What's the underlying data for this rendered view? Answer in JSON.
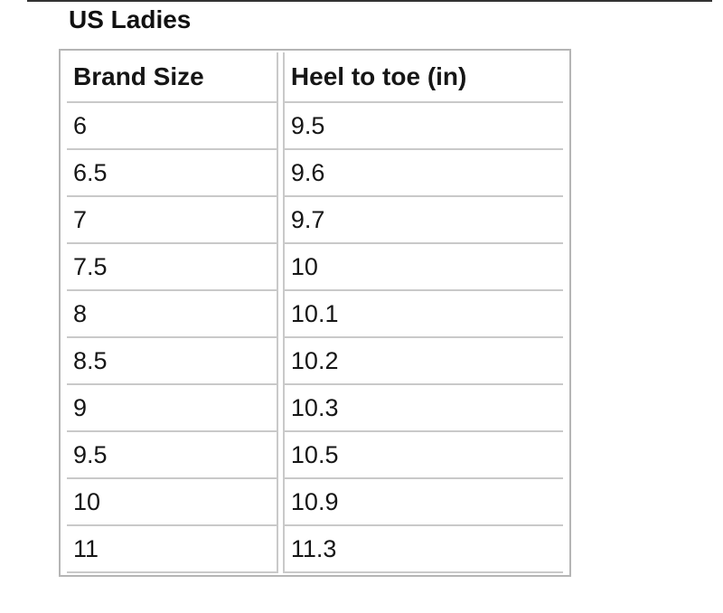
{
  "title": "US Ladies",
  "table": {
    "columns": [
      "Brand Size",
      "Heel to toe (in)"
    ],
    "rows": [
      [
        "6",
        "9.5"
      ],
      [
        "6.5",
        "9.6"
      ],
      [
        "7",
        "9.7"
      ],
      [
        "7.5",
        "10"
      ],
      [
        "8",
        "10.1"
      ],
      [
        "8.5",
        "10.2"
      ],
      [
        "9",
        "10.3"
      ],
      [
        "9.5",
        "10.5"
      ],
      [
        "10",
        "10.9"
      ],
      [
        "11",
        "11.3"
      ]
    ]
  },
  "chart_data": {
    "type": "table",
    "title": "US Ladies",
    "categories": [
      "6",
      "6.5",
      "7",
      "7.5",
      "8",
      "8.5",
      "9",
      "9.5",
      "10",
      "11"
    ],
    "series": [
      {
        "name": "Heel to toe (in)",
        "values": [
          9.5,
          9.6,
          9.7,
          10,
          10.1,
          10.2,
          10.3,
          10.5,
          10.9,
          11.3
        ]
      }
    ]
  },
  "colors": {
    "grid_line": "#c9c9c9",
    "outer_border": "#b5b5b5",
    "top_rule": "#333333",
    "text": "#161616"
  }
}
